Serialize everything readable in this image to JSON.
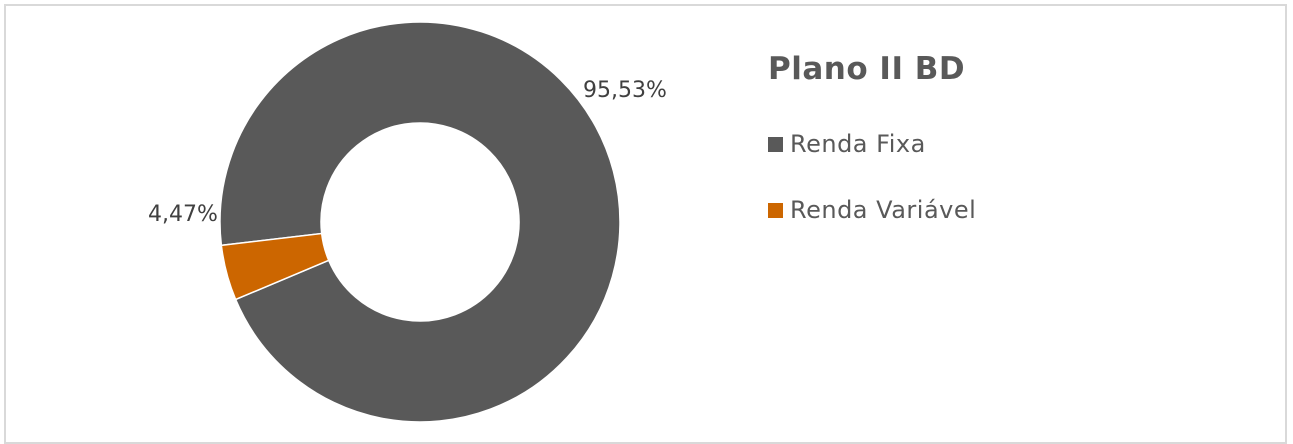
{
  "chart_data": {
    "type": "pie",
    "variant": "donut",
    "title": "Plano II BD",
    "categories": [
      "Renda Fixa",
      "Renda Variável"
    ],
    "values": [
      95.53,
      4.47
    ],
    "data_labels": [
      "95,53%",
      "4,47%"
    ],
    "colors": [
      "#595959",
      "#cc6600"
    ],
    "legend_position": "right"
  }
}
